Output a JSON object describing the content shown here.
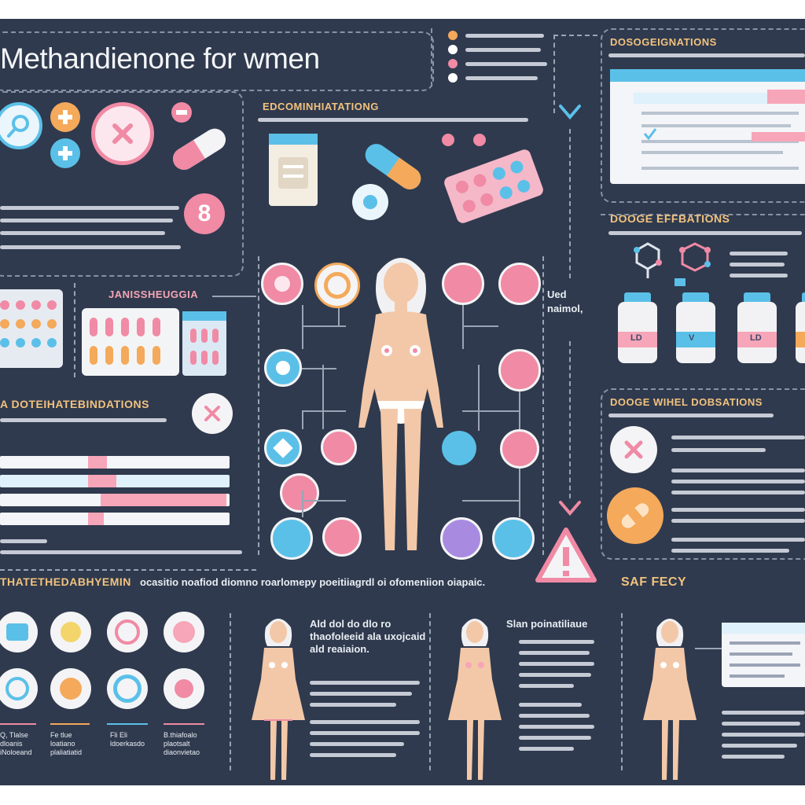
{
  "title": "Methandienone for wmen",
  "sections": {
    "top_center_heading": "EDCOMINHIATATIONG",
    "top_right_heading": "DOSOGEIGNATIONS",
    "right_middle_heading": "DOOGE EFFBATIONS",
    "left_middle_heading": "JANISSHEUGGIA",
    "left_bottom_heading": "A DOTEIHATEBINDATIONS",
    "right_bottom_heading": "DOOGE WIHEL DOBSATIONS",
    "bottom_banner": "THATETHEDABHYEMIN",
    "bottom_banner_text": "ocasitio noafiod diomno roarlomepy poeitiiagrdl oi ofomeniion oiapaic.",
    "safety_label": "SAF FECY",
    "used_note": "Ued naimol,"
  },
  "bottle_labels": [
    "LD",
    "V",
    "LD",
    ""
  ],
  "bottom_cards": [
    {
      "title": "Ald dol do dlo ro thaofoleeid ala uxojcaid ald reaiaion."
    },
    {
      "title": "Slan poinatiliaue"
    },
    {
      "title": ""
    }
  ],
  "bottom_captions": [
    "Q, Tlalse dloanis iNoloeand",
    "Fe tlue loatiano plaliatiatid",
    "Fli Eli ldoerkasdo",
    "B.thiafoalo plaotsalt diaonvietao"
  ],
  "icon_names": [
    "magnifier-icon",
    "plus-icon",
    "cross-icon",
    "capsule-icon",
    "warning-icon",
    "check-icon",
    "flask-icon",
    "molecule-icon",
    "bandage-icon"
  ],
  "colors": {
    "background": "#2f3a4e",
    "accent_pink": "#f08aa5",
    "accent_blue": "#5bc0e8",
    "accent_orange": "#f4a95b",
    "heading": "#f2c27e"
  }
}
